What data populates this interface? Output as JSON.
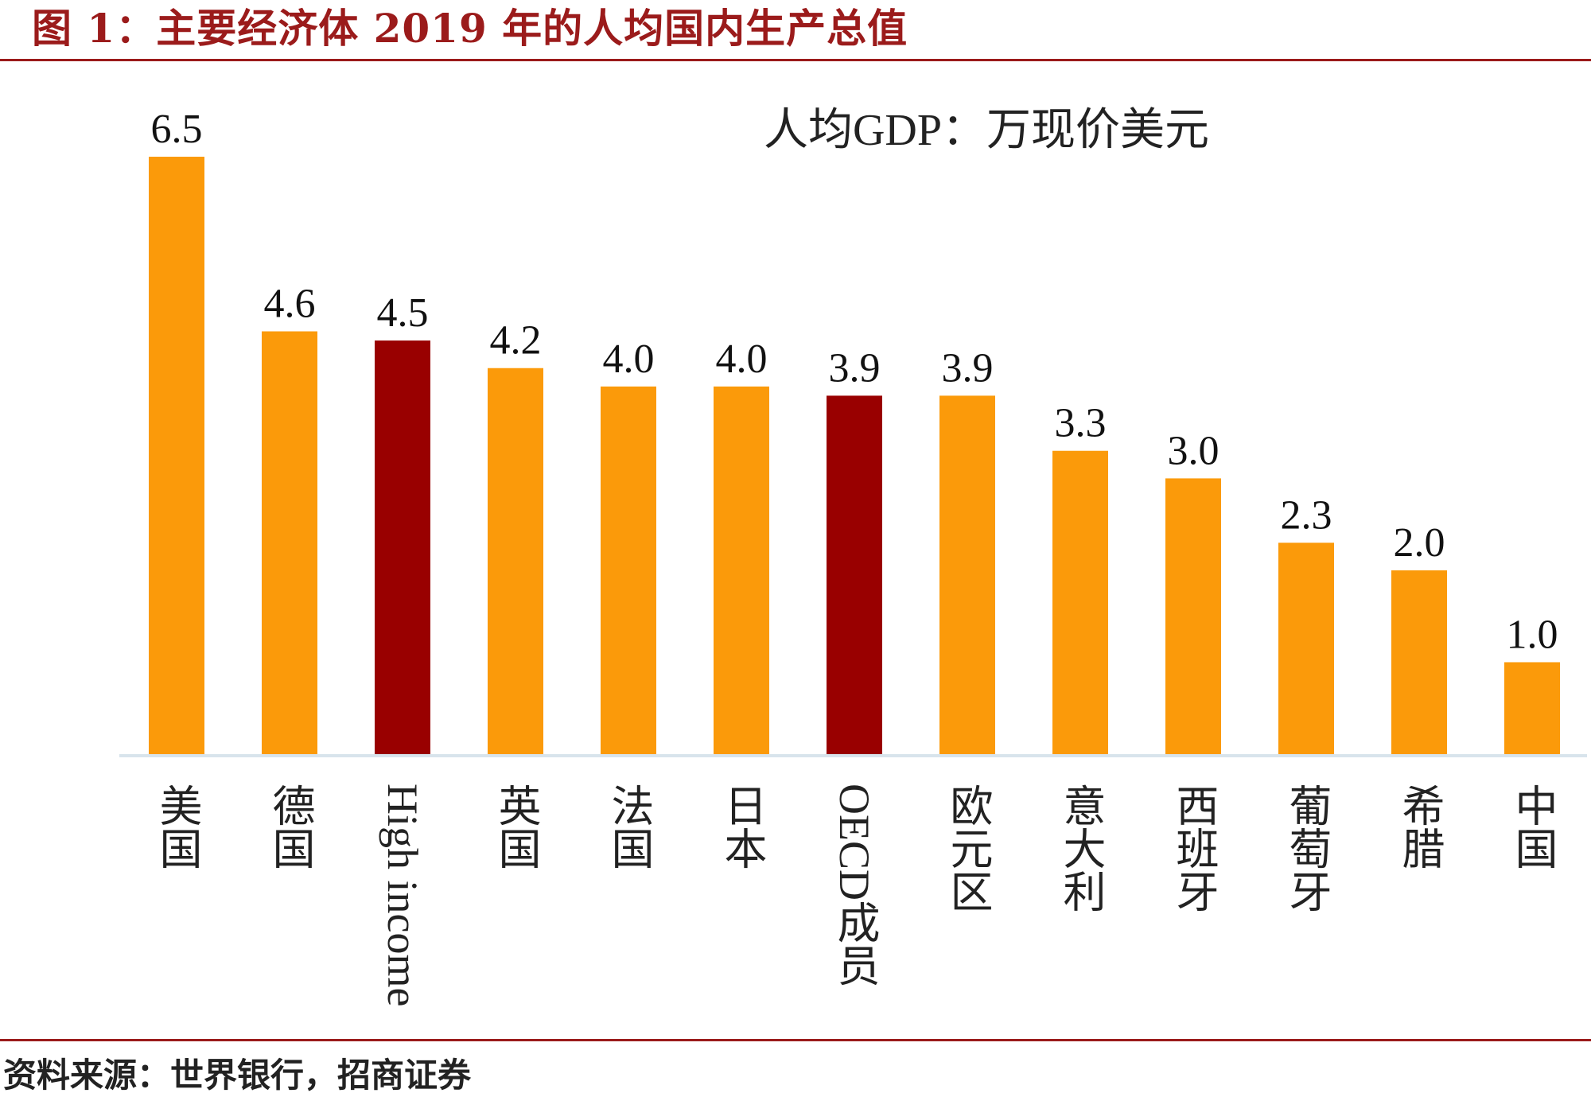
{
  "figure": {
    "title": "图 1：主要经济体 2019 年的人均国内生产总值",
    "source": "资料来源：世界银行，招商证券"
  },
  "colors": {
    "accent": "#9b1b1b",
    "bar_default": "#fb9a0a",
    "bar_highlight": "#990000",
    "axis": "#d8e4ec"
  },
  "chart_data": {
    "type": "bar",
    "title": "人均GDP：万现价美元",
    "categories": [
      "美国",
      "德国",
      "High income",
      "英国",
      "法国",
      "日本",
      "OECD成员",
      "欧元区",
      "意大利",
      "西班牙",
      "葡萄牙",
      "希腊",
      "中国"
    ],
    "values": [
      6.5,
      4.6,
      4.5,
      4.2,
      4.0,
      4.0,
      3.9,
      3.9,
      3.3,
      3.0,
      2.3,
      2.0,
      1.0
    ],
    "value_labels": [
      "6.5",
      "4.6",
      "4.5",
      "4.2",
      "4.0",
      "4.0",
      "3.9",
      "3.9",
      "3.3",
      "3.0",
      "2.3",
      "2.0",
      "1.0"
    ],
    "highlighted": [
      "High income",
      "OECD成员"
    ],
    "ylim": [
      0,
      6.5
    ],
    "xlabel": "",
    "ylabel": "",
    "grid": false,
    "legend": "none"
  }
}
